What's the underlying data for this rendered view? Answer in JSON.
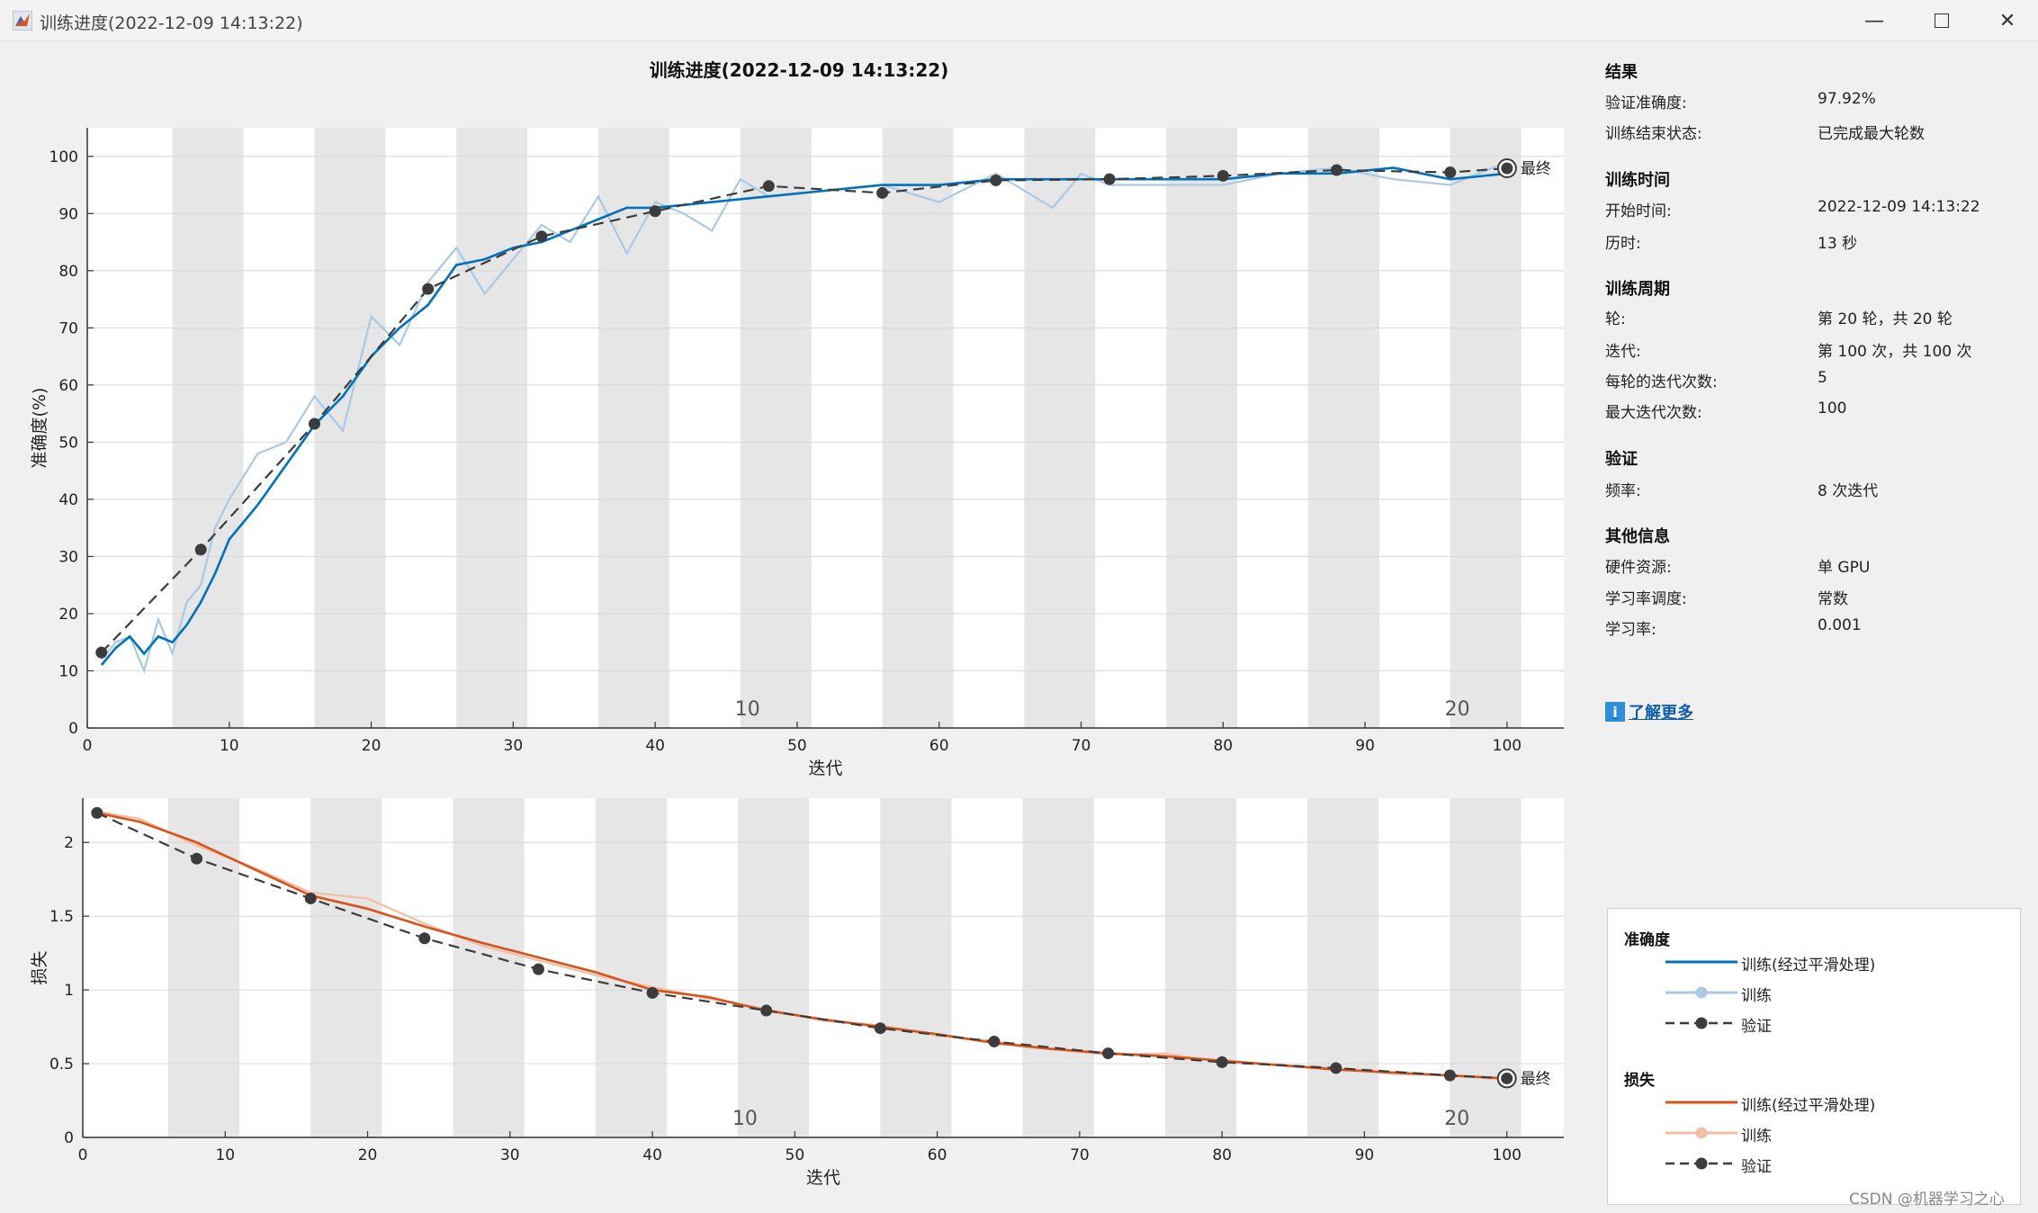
{
  "window": {
    "title": "训练进度(2022-12-09 14:13:22)",
    "minimize_icon": "minimize-icon",
    "maximize_icon": "maximize-icon",
    "close_icon": "close-icon"
  },
  "plot_title": "训练进度(2022-12-09 14:13:22)",
  "colors": {
    "accuracy_smoothed": "#0072bd",
    "accuracy_raw": "#a9c9e4",
    "loss_smoothed": "#d95319",
    "loss_raw": "#f2bfa6",
    "validation": "#3c3c3c",
    "epoch_band": "#e6e6e6"
  },
  "chart_data": [
    {
      "type": "line",
      "name": "accuracy",
      "xlabel": "迭代",
      "ylabel": "准确度(%)",
      "xlim": [
        0,
        104
      ],
      "ylim": [
        0,
        105
      ],
      "xticks": [
        0,
        10,
        20,
        30,
        40,
        50,
        60,
        70,
        80,
        90,
        100
      ],
      "yticks": [
        0,
        10,
        20,
        30,
        40,
        50,
        60,
        70,
        80,
        90,
        100
      ],
      "grid": true,
      "epoch_markers": [
        {
          "label": "10",
          "x": 46.5
        },
        {
          "label": "20",
          "x": 96.5
        }
      ],
      "final_label": "最终",
      "series": [
        {
          "name": "训练(经过平滑处理)",
          "x": [
            1,
            2,
            3,
            4,
            5,
            6,
            7,
            8,
            9,
            10,
            12,
            14,
            16,
            18,
            20,
            22,
            24,
            26,
            28,
            30,
            32,
            34,
            36,
            38,
            40,
            44,
            48,
            52,
            56,
            60,
            64,
            68,
            72,
            76,
            80,
            84,
            88,
            92,
            96,
            100
          ],
          "values": [
            11,
            14,
            16,
            13,
            16,
            15,
            18,
            22,
            27,
            33,
            39,
            46,
            53,
            58,
            65,
            70,
            74,
            81,
            82,
            84,
            85,
            87,
            89,
            91,
            91,
            92,
            93,
            94,
            95,
            95,
            96,
            96,
            96,
            96,
            96,
            97,
            97,
            98,
            96,
            97
          ]
        },
        {
          "name": "训练",
          "x": [
            1,
            2,
            3,
            4,
            5,
            6,
            7,
            8,
            9,
            10,
            12,
            14,
            16,
            18,
            20,
            22,
            24,
            26,
            28,
            30,
            32,
            34,
            36,
            38,
            40,
            42,
            44,
            46,
            48,
            52,
            56,
            60,
            64,
            68,
            70,
            72,
            76,
            80,
            84,
            88,
            92,
            96,
            100
          ],
          "values": [
            12,
            15,
            16,
            10,
            19,
            13,
            22,
            25,
            35,
            40,
            48,
            50,
            58,
            52,
            72,
            67,
            78,
            84,
            76,
            82,
            88,
            85,
            93,
            83,
            92,
            90,
            87,
            96,
            93,
            94,
            95,
            92,
            97,
            91,
            97,
            95,
            95,
            95,
            97,
            98,
            96,
            95,
            99
          ]
        },
        {
          "name": "验证",
          "x": [
            1,
            8,
            16,
            24,
            32,
            40,
            48,
            56,
            64,
            72,
            80,
            88,
            96,
            100
          ],
          "values": [
            13.2,
            31.2,
            53.2,
            76.8,
            86.0,
            90.4,
            94.8,
            93.6,
            95.8,
            96.0,
            96.6,
            97.6,
            97.2,
            97.92
          ]
        }
      ]
    },
    {
      "type": "line",
      "name": "loss",
      "xlabel": "迭代",
      "ylabel": "损失",
      "xlim": [
        0,
        104
      ],
      "ylim": [
        0,
        2.3
      ],
      "xticks": [
        0,
        10,
        20,
        30,
        40,
        50,
        60,
        70,
        80,
        90,
        100
      ],
      "yticks": [
        0,
        0.5,
        1,
        1.5,
        2
      ],
      "grid": true,
      "epoch_markers": [
        {
          "label": "10",
          "x": 46.5
        },
        {
          "label": "20",
          "x": 96.5
        }
      ],
      "final_label": "最终",
      "series": [
        {
          "name": "训练(经过平滑处理)",
          "x": [
            1,
            4,
            8,
            12,
            16,
            20,
            24,
            28,
            32,
            36,
            40,
            44,
            48,
            52,
            56,
            60,
            64,
            68,
            72,
            76,
            80,
            84,
            88,
            92,
            96,
            100
          ],
          "values": [
            2.2,
            2.14,
            2.0,
            1.82,
            1.64,
            1.55,
            1.43,
            1.32,
            1.22,
            1.12,
            1.0,
            0.95,
            0.86,
            0.8,
            0.75,
            0.7,
            0.64,
            0.6,
            0.57,
            0.55,
            0.52,
            0.49,
            0.46,
            0.44,
            0.42,
            0.4
          ]
        },
        {
          "name": "训练",
          "x": [
            1,
            4,
            8,
            12,
            16,
            20,
            24,
            28,
            32,
            36,
            40,
            44,
            48,
            52,
            56,
            60,
            64,
            68,
            72,
            76,
            80,
            84,
            88,
            92,
            96,
            100
          ],
          "values": [
            2.21,
            2.16,
            1.98,
            1.83,
            1.66,
            1.62,
            1.45,
            1.3,
            1.2,
            1.1,
            1.02,
            0.94,
            0.87,
            0.79,
            0.76,
            0.69,
            0.65,
            0.6,
            0.56,
            0.57,
            0.51,
            0.49,
            0.47,
            0.43,
            0.42,
            0.39
          ]
        },
        {
          "name": "验证",
          "x": [
            1,
            8,
            16,
            24,
            32,
            40,
            48,
            56,
            64,
            72,
            80,
            88,
            96,
            100
          ],
          "values": [
            2.2,
            1.89,
            1.62,
            1.35,
            1.14,
            0.98,
            0.86,
            0.74,
            0.65,
            0.57,
            0.51,
            0.47,
            0.42,
            0.4
          ]
        }
      ]
    }
  ],
  "side_panel": {
    "results": {
      "title": "结果",
      "val_acc_label": "验证准确度:",
      "val_acc_value": "97.92%",
      "status_label": "训练结束状态:",
      "status_value": "已完成最大轮数"
    },
    "time": {
      "title": "训练时间",
      "start_label": "开始时间:",
      "start_value": "2022-12-09 14:13:22",
      "elapsed_label": "历时:",
      "elapsed_value": "13 秒"
    },
    "cycle": {
      "title": "训练周期",
      "epoch_label": "轮:",
      "epoch_value": "第 20 轮，共 20 轮",
      "iter_label": "迭代:",
      "iter_value": "第 100 次，共 100 次",
      "iter_per_epoch_label": "每轮的迭代次数:",
      "iter_per_epoch_value": "5",
      "max_iter_label": "最大迭代次数:",
      "max_iter_value": "100"
    },
    "validation": {
      "title": "验证",
      "freq_label": "频率:",
      "freq_value": "8 次迭代"
    },
    "other": {
      "title": "其他信息",
      "hw_label": "硬件资源:",
      "hw_value": "单 GPU",
      "lr_sched_label": "学习率调度:",
      "lr_sched_value": "常数",
      "lr_label": "学习率:",
      "lr_value": "0.001"
    },
    "learn_more": "了解更多",
    "info_icon": "i"
  },
  "legend": {
    "acc_title": "准确度",
    "acc_smoothed": "训练(经过平滑处理)",
    "acc_raw": "训练",
    "acc_val": "验证",
    "loss_title": "损失",
    "loss_smoothed": "训练(经过平滑处理)",
    "loss_raw": "训练",
    "loss_val": "验证"
  },
  "watermark": "CSDN @机器学习之心"
}
